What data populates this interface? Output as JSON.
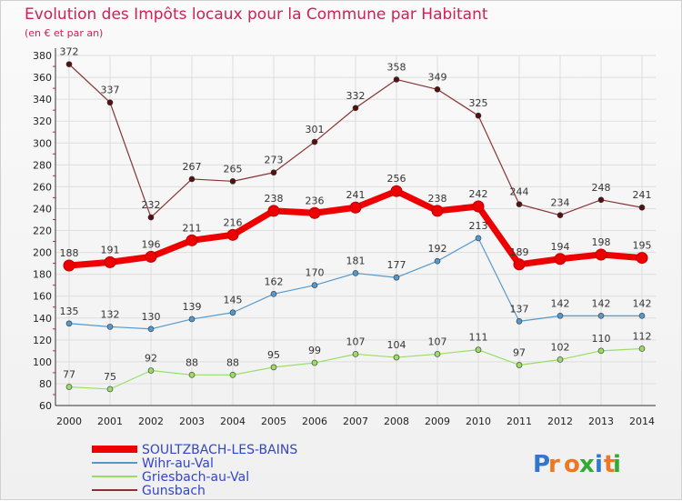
{
  "title": "Evolution des Impôts locaux pour la Commune par Habitant",
  "subtitle": "(en € et par an)",
  "logo_text": "Proxiti",
  "chart_data": {
    "type": "line",
    "x": [
      2000,
      2001,
      2002,
      2003,
      2004,
      2005,
      2006,
      2007,
      2008,
      2009,
      2010,
      2011,
      2012,
      2013,
      2014
    ],
    "ylim": [
      60,
      380
    ],
    "yticks": [
      60,
      80,
      100,
      120,
      140,
      160,
      180,
      200,
      220,
      240,
      260,
      280,
      300,
      320,
      340,
      360,
      380
    ],
    "grid": true,
    "legend_placement": "bottom-left",
    "series": [
      {
        "name": "SOULTZBACH-LES-BAINS",
        "color": "#ee0000",
        "values": [
          188,
          191,
          196,
          211,
          216,
          238,
          236,
          241,
          256,
          238,
          242,
          189,
          194,
          198,
          195
        ]
      },
      {
        "name": "Wihr-au-Val",
        "color": "#5599cc",
        "values": [
          135,
          132,
          130,
          139,
          145,
          162,
          170,
          181,
          177,
          192,
          213,
          137,
          142,
          142,
          142
        ]
      },
      {
        "name": "Griesbach-au-Val",
        "color": "#99dd66",
        "values": [
          77,
          75,
          92,
          88,
          88,
          95,
          99,
          107,
          104,
          107,
          111,
          97,
          102,
          110,
          112
        ]
      },
      {
        "name": "Gunsbach",
        "color": "#883333",
        "values": [
          372,
          337,
          232,
          267,
          265,
          273,
          301,
          332,
          358,
          349,
          325,
          244,
          234,
          248,
          241
        ]
      }
    ]
  }
}
